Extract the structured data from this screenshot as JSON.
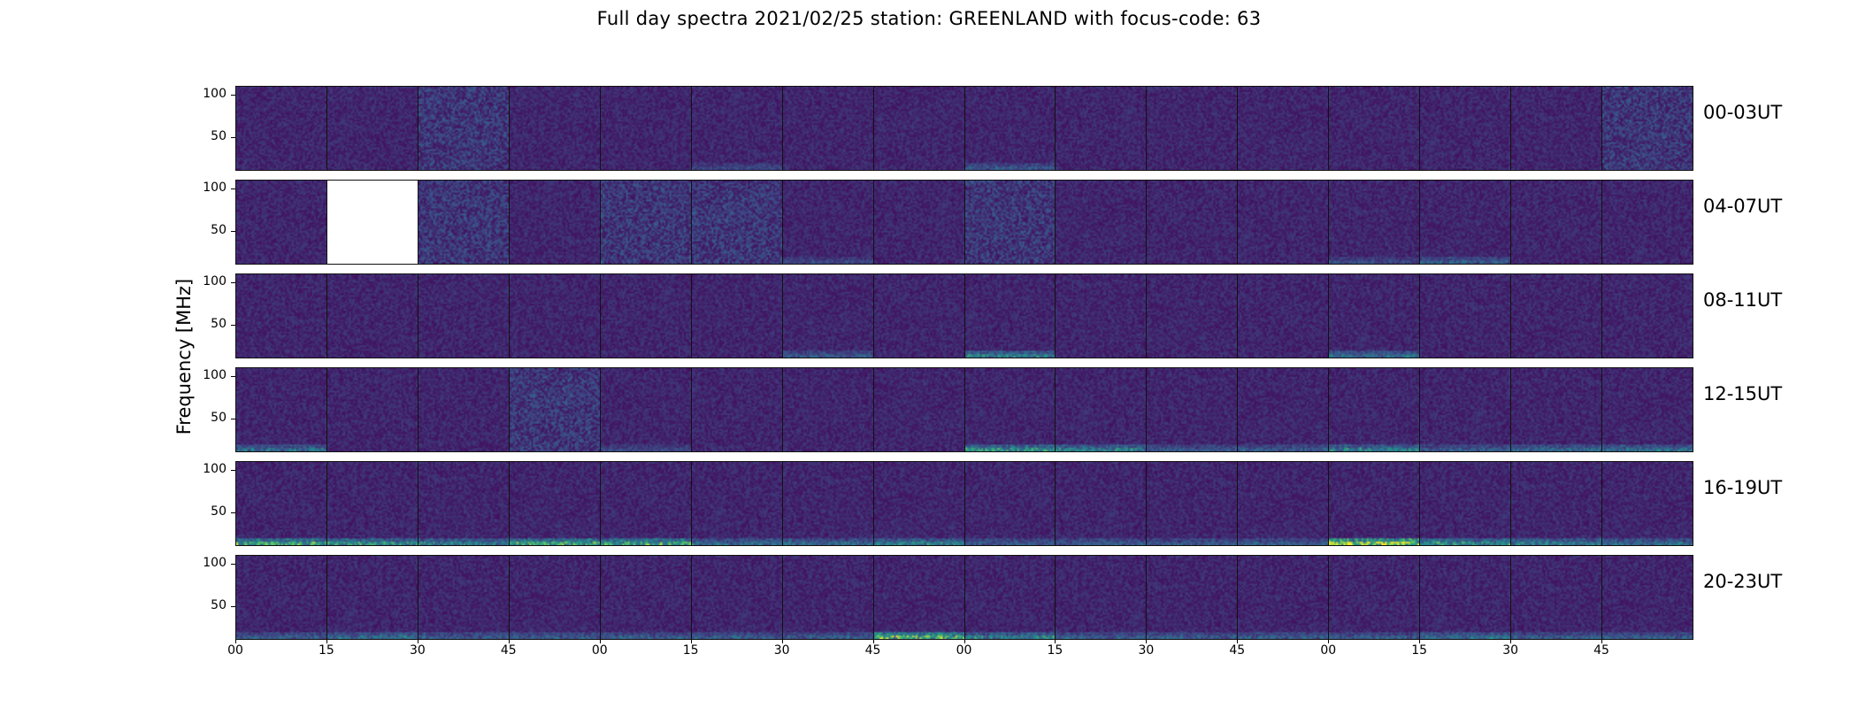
{
  "chart_data": {
    "type": "heatmap",
    "title": "Full day spectra 2021/02/25 station: GREENLAND with focus-code: 63",
    "ylabel": "Frequency [MHz]",
    "xlabel": "",
    "y_ticks": [
      "100",
      "50"
    ],
    "x_ticks": [
      "00",
      "15",
      "30",
      "45",
      "00",
      "15",
      "30",
      "45",
      "00",
      "15",
      "30",
      "45",
      "00",
      "15",
      "30",
      "45"
    ],
    "colormap": "viridis",
    "colors": {
      "low": "#440154",
      "mid": "#3b528b",
      "high": "#fde725"
    },
    "panels_per_row": 16,
    "rows": [
      {
        "label": "00-03UT",
        "missing": [],
        "noisy": [
          2,
          15
        ],
        "band": [
          0,
          0,
          0,
          0,
          0,
          0.2,
          0,
          0,
          0.3,
          0,
          0,
          0,
          0,
          0,
          0,
          0
        ]
      },
      {
        "label": "04-07UT",
        "missing": [
          1
        ],
        "noisy": [
          2,
          4,
          5,
          8
        ],
        "band": [
          0,
          0,
          0,
          0,
          0,
          0,
          0.2,
          0,
          0,
          0,
          0,
          0,
          0.2,
          0.3,
          0,
          0
        ]
      },
      {
        "label": "08-11UT",
        "missing": [],
        "noisy": [],
        "band": [
          0,
          0,
          0,
          0,
          0,
          0,
          0.3,
          0,
          0.5,
          0,
          0,
          0,
          0.4,
          0,
          0,
          0
        ]
      },
      {
        "label": "12-15UT",
        "missing": [],
        "noisy": [
          3
        ],
        "band": [
          0.4,
          0,
          0,
          0,
          0.2,
          0,
          0,
          0,
          0.6,
          0.5,
          0.3,
          0.3,
          0.5,
          0.3,
          0.4,
          0.4
        ]
      },
      {
        "label": "16-19UT",
        "missing": [],
        "noisy": [],
        "band": [
          0.7,
          0.6,
          0.5,
          0.7,
          0.7,
          0.4,
          0.4,
          0.5,
          0.3,
          0.3,
          0.3,
          0.3,
          1.0,
          0.6,
          0.5,
          0.4
        ]
      },
      {
        "label": "20-23UT",
        "missing": [],
        "noisy": [],
        "band": [
          0.3,
          0.4,
          0.3,
          0.3,
          0.3,
          0.3,
          0.3,
          0.8,
          0.5,
          0.3,
          0.3,
          0.3,
          0.3,
          0.4,
          0.3,
          0.3
        ]
      }
    ]
  }
}
